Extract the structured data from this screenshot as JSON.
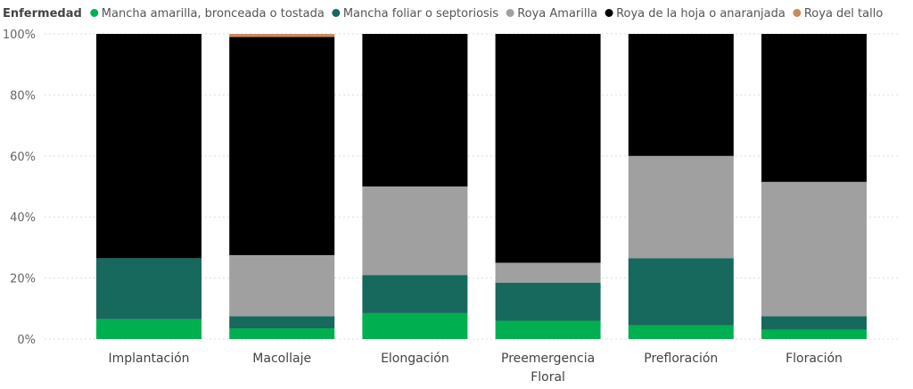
{
  "legend": {
    "title": "Enfermedad"
  },
  "chart_data": {
    "type": "bar",
    "stacked": true,
    "normalized": true,
    "categories": [
      [
        "Implantación"
      ],
      [
        "Macollaje"
      ],
      [
        "Elongación"
      ],
      [
        "Preemergencia",
        "Floral"
      ],
      [
        "Prefloración"
      ],
      [
        "Floración"
      ]
    ],
    "series": [
      {
        "name": "Mancha amarilla, bronceada o tostada",
        "color": "#00b050",
        "values": [
          6.5,
          3.5,
          8.5,
          6.0,
          4.5,
          3.0
        ]
      },
      {
        "name": "Mancha foliar o septoriosis",
        "color": "#17685d",
        "values": [
          20.0,
          4.0,
          12.5,
          12.5,
          22.0,
          4.5
        ]
      },
      {
        "name": "Roya Amarilla",
        "color": "#a0a0a0",
        "values": [
          0.0,
          20.0,
          29.0,
          6.5,
          33.5,
          44.0
        ]
      },
      {
        "name": "Roya de la hoja o anaranjada",
        "color": "#000000",
        "values": [
          73.5,
          71.5,
          50.0,
          75.0,
          40.0,
          48.5
        ]
      },
      {
        "name": "Roya del tallo",
        "color": "#c8895f",
        "values": [
          0.0,
          1.0,
          0.0,
          0.0,
          0.0,
          0.0
        ]
      }
    ],
    "y_ticks": [
      "0%",
      "20%",
      "40%",
      "60%",
      "80%",
      "100%"
    ],
    "ylim": [
      0,
      100
    ],
    "grid": true,
    "legend_position": "top-left"
  }
}
